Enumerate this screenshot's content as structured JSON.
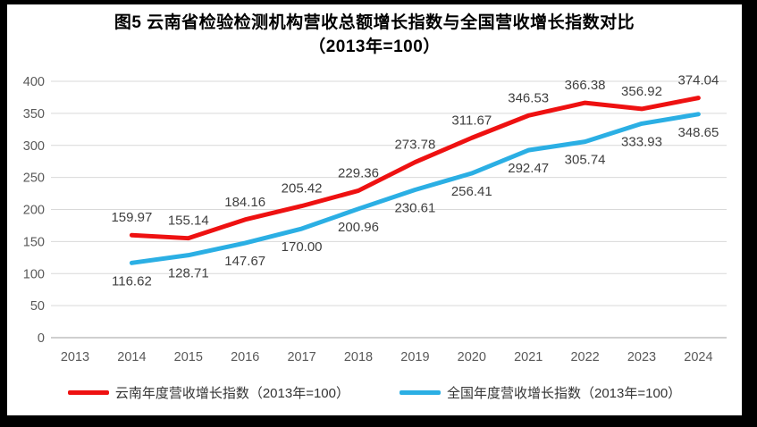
{
  "title": {
    "line1": "图5  云南省检验检测机构营收总额增长指数与全国营收增长指数对比",
    "line2": "（2013年=100）"
  },
  "chart_data": {
    "type": "line",
    "title": "图5 云南省检验检测机构营收总额增长指数与全国营收增长指数对比（2013年=100）",
    "categories": [
      "2013",
      "2014",
      "2015",
      "2016",
      "2017",
      "2018",
      "2019",
      "2020",
      "2021",
      "2022",
      "2023",
      "2024"
    ],
    "series": [
      {
        "name": "云南年度营收增长指数（2013年=100）",
        "color": "#ee1111",
        "label_position": "above",
        "values": [
          null,
          159.97,
          155.14,
          184.16,
          205.42,
          229.36,
          273.78,
          311.67,
          346.53,
          366.38,
          356.92,
          374.04
        ],
        "labels": [
          null,
          "159.97",
          "155.14",
          "184.16",
          "205.42",
          "229.36",
          "273.78",
          "311.67",
          "346.53",
          "366.38",
          "356.92",
          "374.04"
        ]
      },
      {
        "name": "全国年度营收增长指数（2013年=100）",
        "color": "#2bafe4",
        "label_position": "below",
        "values": [
          null,
          116.62,
          128.71,
          147.67,
          170.0,
          200.96,
          230.61,
          256.41,
          292.47,
          305.74,
          333.93,
          348.65
        ],
        "labels": [
          null,
          "116.62",
          "128.71",
          "147.67",
          "170.00",
          "200.96",
          "230.61",
          "256.41",
          "292.47",
          "305.74",
          "333.93",
          "348.65"
        ]
      }
    ],
    "y_ticks": [
      0,
      50,
      100,
      150,
      200,
      250,
      300,
      350,
      400
    ],
    "ylim": [
      0,
      400
    ],
    "grid": true,
    "legend_position": "bottom"
  },
  "colors": {
    "grid": "#d9d9d9",
    "axis_line": "#bfbfbf",
    "tick_label": "#595959",
    "data_label": "#3f3f3f",
    "frame": "#000000",
    "background": "#ffffff"
  }
}
